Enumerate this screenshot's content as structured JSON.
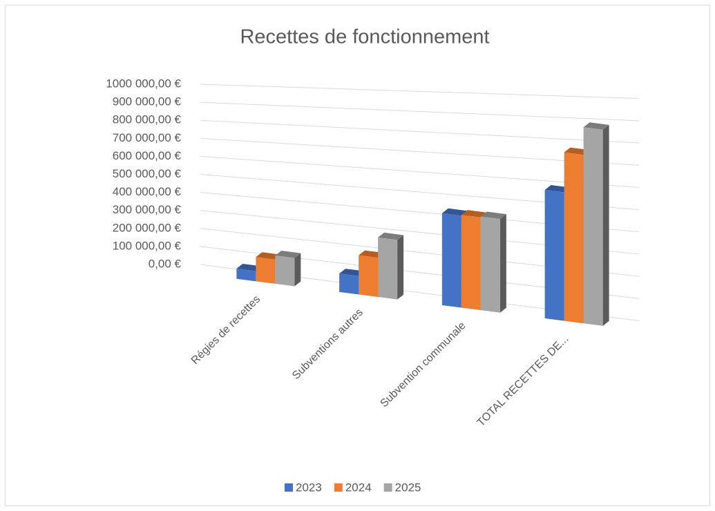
{
  "chart_data": {
    "type": "bar3d",
    "title": "Recettes de fonctionnement",
    "categories": [
      "Régies de recettes",
      "Subventions autres",
      "Subvention communale",
      "TOTAL RECETTES DE..."
    ],
    "series": [
      {
        "name": "2023",
        "color": "#4472c4",
        "values": [
          55000,
          95000,
          450000,
          600000
        ]
      },
      {
        "name": "2024",
        "color": "#ed7d31",
        "values": [
          130000,
          200000,
          450000,
          780000
        ]
      },
      {
        "name": "2025",
        "color": "#a5a5a5",
        "values": [
          150000,
          300000,
          450000,
          900000
        ]
      }
    ],
    "ylim": [
      0,
      1000000
    ],
    "yticks": [
      {
        "value": 0,
        "label": "0,00 €"
      },
      {
        "value": 100000,
        "label": "100 000,00 €"
      },
      {
        "value": 200000,
        "label": "200 000,00 €"
      },
      {
        "value": 300000,
        "label": "300 000,00 €"
      },
      {
        "value": 400000,
        "label": "400 000,00 €"
      },
      {
        "value": 500000,
        "label": "500 000,00 €"
      },
      {
        "value": 600000,
        "label": "600 000,00 €"
      },
      {
        "value": 700000,
        "label": "700 000,00 €"
      },
      {
        "value": 800000,
        "label": "800 000,00 €"
      },
      {
        "value": 900000,
        "label": "900 000,00 €"
      },
      {
        "value": 1000000,
        "label": "1000 000,00 €"
      }
    ],
    "grid": true,
    "legend": "bottom"
  }
}
